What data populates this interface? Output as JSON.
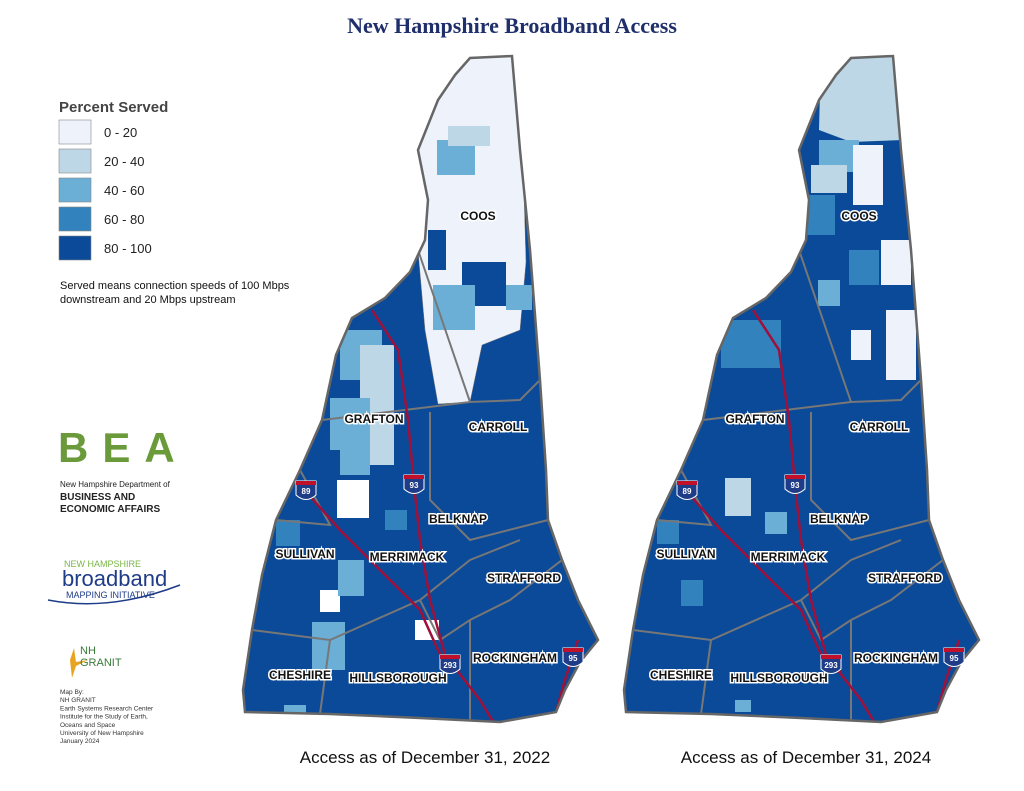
{
  "title": "New Hampshire Broadband Access",
  "legend": {
    "title": "Percent Served",
    "items": [
      {
        "label": "0 - 20",
        "color": "#eef3fb"
      },
      {
        "label": "20 - 40",
        "color": "#bdd7e7"
      },
      {
        "label": "40 - 60",
        "color": "#6baed6"
      },
      {
        "label": "60 - 80",
        "color": "#3182bd"
      },
      {
        "label": "80 - 100",
        "color": "#0b4a98"
      }
    ],
    "note": [
      "Served means connection speeds of 100 Mbps",
      "downstream and 20 Mbps upstream"
    ]
  },
  "logos": {
    "bea": "BEA",
    "bea_department": [
      "New Hampshire Department of",
      "BUSINESS AND",
      "ECONOMIC AFFAIRS"
    ],
    "broadband": [
      "NEW HAMPSHIRE",
      "broadband",
      "MAPPING INITIATIVE"
    ],
    "granit": [
      "NH",
      "GRANIT"
    ]
  },
  "credits": [
    "Map By:",
    "NH GRANIT",
    "Earth Systems Research Center",
    "Institute for the Study of Earth,",
    " Oceans and Space",
    "University of New Hampshire",
    "January 2024"
  ],
  "maps": [
    {
      "caption": "Access as of December 31, 2022",
      "counties": [
        "COOS",
        "GRAFTON",
        "CARROLL",
        "BELKNAP",
        "SULLIVAN",
        "MERRIMACK",
        "STRAFFORD",
        "CHESHIRE",
        "HILLSBOROUGH",
        "ROCKINGHAM"
      ],
      "highways": [
        "89",
        "93",
        "293",
        "95"
      ]
    },
    {
      "caption": "Access as of December 31, 2024",
      "counties": [
        "COOS",
        "GRAFTON",
        "CARROLL",
        "BELKNAP",
        "SULLIVAN",
        "MERRIMACK",
        "STRAFFORD",
        "CHESHIRE",
        "HILLSBOROUGH",
        "ROCKINGHAM"
      ],
      "highways": [
        "89",
        "93",
        "293",
        "95"
      ]
    }
  ]
}
